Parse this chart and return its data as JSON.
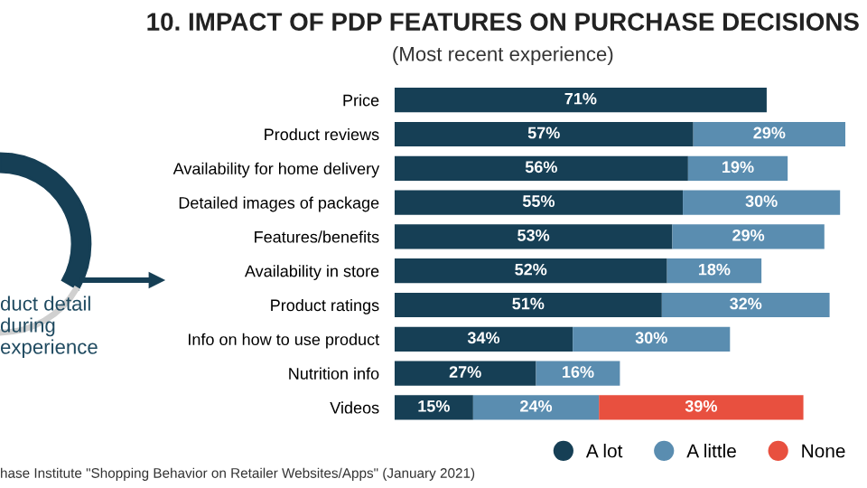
{
  "chart_data": {
    "type": "bar",
    "orientation": "horizontal",
    "stacked": true,
    "title": "10. IMPACT OF PDP FEATURES ON PURCHASE DECISIONS",
    "subtitle": "(Most recent experience)",
    "categories": [
      "Price",
      "Product reviews",
      "Availability for home delivery",
      "Detailed images of package",
      "Features/benefits",
      "Availability in store",
      "Product ratings",
      "Info on how to use product",
      "Nutrition info",
      "Videos"
    ],
    "series": [
      {
        "name": "A lot",
        "color": "#163f55",
        "values": [
          71,
          57,
          56,
          55,
          53,
          52,
          51,
          34,
          27,
          15
        ],
        "value_labels": [
          "71%",
          "57%",
          "56%",
          "55%",
          "53%",
          "52%",
          "51%",
          "34%",
          "27%",
          "15%"
        ]
      },
      {
        "name": "A little",
        "color": "#5a8db0",
        "values": [
          null,
          29,
          19,
          30,
          29,
          18,
          32,
          30,
          16,
          24
        ],
        "value_labels": [
          null,
          "29%",
          "19%",
          "30%",
          "29%",
          "18%",
          "32%",
          "30%",
          "16%",
          "24%"
        ]
      },
      {
        "name": "None",
        "color": "#e8503f",
        "values": [
          null,
          null,
          null,
          null,
          null,
          null,
          null,
          null,
          null,
          39
        ],
        "value_labels": [
          null,
          null,
          null,
          null,
          null,
          null,
          null,
          null,
          null,
          "39%"
        ]
      }
    ],
    "legend": "bottom right",
    "annotations": [
      "duct detail\nduring\nexperience",
      "hase Institute \"Shopping Behavior on Retailer Websites/Apps\" (January 2021)"
    ]
  }
}
